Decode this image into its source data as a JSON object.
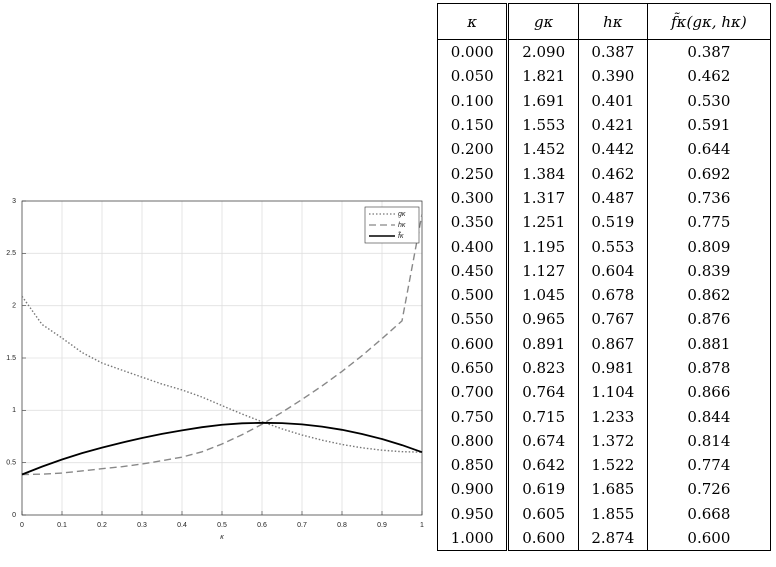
{
  "chart_data": {
    "type": "line",
    "xlabel": "κ",
    "x": [
      0,
      0.05,
      0.1,
      0.15,
      0.2,
      0.25,
      0.3,
      0.35,
      0.4,
      0.45,
      0.5,
      0.55,
      0.6,
      0.65,
      0.7,
      0.75,
      0.8,
      0.85,
      0.9,
      0.95,
      1
    ],
    "series": [
      {
        "name": "gκ",
        "color": "#777777",
        "dash": "1.5 2",
        "values": [
          2.09,
          1.821,
          1.691,
          1.553,
          1.452,
          1.384,
          1.317,
          1.251,
          1.195,
          1.127,
          1.045,
          0.965,
          0.891,
          0.823,
          0.764,
          0.715,
          0.674,
          0.642,
          0.619,
          0.605,
          0.6
        ]
      },
      {
        "name": "hκ",
        "color": "#888888",
        "dash": "7 4",
        "values": [
          0.387,
          0.39,
          0.401,
          0.421,
          0.442,
          0.462,
          0.487,
          0.519,
          0.553,
          0.604,
          0.678,
          0.767,
          0.867,
          0.981,
          1.104,
          1.233,
          1.372,
          1.522,
          1.685,
          1.855,
          2.874
        ]
      },
      {
        "name": "f̃κ",
        "color": "#000000",
        "dash": "none",
        "values": [
          0.387,
          0.462,
          0.53,
          0.591,
          0.644,
          0.692,
          0.736,
          0.775,
          0.809,
          0.839,
          0.862,
          0.876,
          0.881,
          0.878,
          0.866,
          0.844,
          0.814,
          0.774,
          0.726,
          0.668,
          0.6
        ]
      }
    ],
    "xlim": [
      0,
      1
    ],
    "xticks": [
      0,
      0.1,
      0.2,
      0.3,
      0.4,
      0.5,
      0.6,
      0.7,
      0.8,
      0.9,
      1
    ],
    "ylim": [
      0,
      3
    ],
    "yticks": [
      0,
      0.5,
      1,
      1.5,
      2,
      2.5,
      3
    ],
    "grid": true,
    "legend": "upper right"
  },
  "table": {
    "header": [
      "κ",
      "gκ",
      "hκ",
      "f̃κ(gκ, hκ)"
    ],
    "rows": [
      [
        "0.000",
        "2.090",
        "0.387",
        "0.387"
      ],
      [
        "0.050",
        "1.821",
        "0.390",
        "0.462"
      ],
      [
        "0.100",
        "1.691",
        "0.401",
        "0.530"
      ],
      [
        "0.150",
        "1.553",
        "0.421",
        "0.591"
      ],
      [
        "0.200",
        "1.452",
        "0.442",
        "0.644"
      ],
      [
        "0.250",
        "1.384",
        "0.462",
        "0.692"
      ],
      [
        "0.300",
        "1.317",
        "0.487",
        "0.736"
      ],
      [
        "0.350",
        "1.251",
        "0.519",
        "0.775"
      ],
      [
        "0.400",
        "1.195",
        "0.553",
        "0.809"
      ],
      [
        "0.450",
        "1.127",
        "0.604",
        "0.839"
      ],
      [
        "0.500",
        "1.045",
        "0.678",
        "0.862"
      ],
      [
        "0.550",
        "0.965",
        "0.767",
        "0.876"
      ],
      [
        "0.600",
        "0.891",
        "0.867",
        "0.881"
      ],
      [
        "0.650",
        "0.823",
        "0.981",
        "0.878"
      ],
      [
        "0.700",
        "0.764",
        "1.104",
        "0.866"
      ],
      [
        "0.750",
        "0.715",
        "1.233",
        "0.844"
      ],
      [
        "0.800",
        "0.674",
        "1.372",
        "0.814"
      ],
      [
        "0.850",
        "0.642",
        "1.522",
        "0.774"
      ],
      [
        "0.900",
        "0.619",
        "1.685",
        "0.726"
      ],
      [
        "0.950",
        "0.605",
        "1.855",
        "0.668"
      ],
      [
        "1.000",
        "0.600",
        "2.874",
        "0.600"
      ]
    ]
  }
}
